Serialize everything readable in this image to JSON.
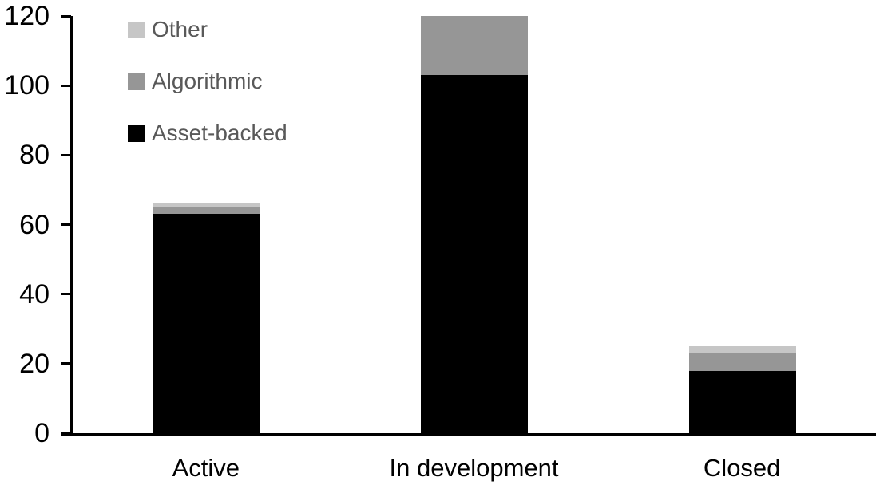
{
  "chart_data": {
    "type": "bar",
    "stacked": true,
    "title": "",
    "xlabel": "",
    "ylabel": "",
    "categories": [
      "Active",
      "In development",
      "Closed"
    ],
    "series": [
      {
        "name": "Asset-backed",
        "color": "#000000",
        "values": [
          63,
          103,
          18
        ]
      },
      {
        "name": "Algorithmic",
        "color": "#969696",
        "values": [
          2,
          17,
          5
        ]
      },
      {
        "name": "Other",
        "color": "#c6c6c6",
        "values": [
          1,
          0,
          2
        ]
      }
    ],
    "stack_totals": [
      66,
      120,
      25
    ],
    "ylim": [
      0,
      120
    ],
    "yticks": [
      0,
      20,
      40,
      60,
      80,
      100,
      120
    ],
    "grid": false,
    "axis_color": "#000000",
    "legend": {
      "position": "top-left",
      "text_color": "#595959",
      "entries": [
        {
          "label": "Other",
          "color": "#c6c6c6"
        },
        {
          "label": "Algorithmic",
          "color": "#969696"
        },
        {
          "label": "Asset-backed",
          "color": "#000000"
        }
      ]
    }
  }
}
